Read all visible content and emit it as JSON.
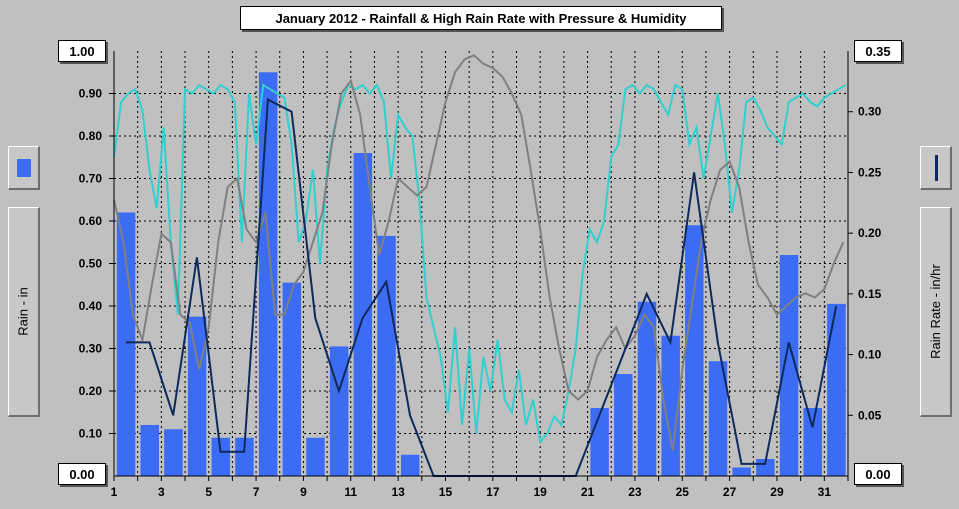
{
  "chart_data": {
    "type": "bar",
    "title": "January 2012 - Rainfall & High Rain Rate with Pressure & Humidity",
    "ylabel": "Rain - in",
    "y2label": "Rain Rate - in/hr",
    "ylim": [
      0,
      1.0
    ],
    "y2lim": [
      0,
      0.35
    ],
    "x_ticks": [
      "1",
      "3",
      "5",
      "7",
      "9",
      "11",
      "13",
      "15",
      "17",
      "19",
      "21",
      "23",
      "25",
      "27",
      "29",
      "31"
    ],
    "y_ticks": [
      "0.10",
      "0.20",
      "0.30",
      "0.40",
      "0.50",
      "0.60",
      "0.70",
      "0.80",
      "0.90"
    ],
    "y_top_label": "1.00",
    "y_bottom_label": "0.00",
    "y2_ticks": [
      "0.05",
      "0.10",
      "0.15",
      "0.20",
      "0.25",
      "0.30"
    ],
    "y2_top_label": "0.35",
    "y2_bottom_label": "0.00",
    "grid": true,
    "rain_color": "#3c6cf4",
    "rate_color": "#0c2a5c",
    "humidity_color": "#30d0d0",
    "pressure_color": "#808080",
    "daily_rain": {
      "name": "Rain",
      "days": [
        1,
        2,
        3,
        4,
        5,
        6,
        7,
        8,
        9,
        10,
        11,
        12,
        13,
        14,
        15,
        16,
        17,
        18,
        19,
        20,
        21,
        22,
        23,
        24,
        25,
        26,
        27,
        28,
        29,
        30,
        31
      ],
      "values": [
        0.62,
        0.12,
        0.11,
        0.375,
        0.09,
        0.09,
        0.95,
        0.455,
        0.09,
        0.305,
        0.76,
        0.565,
        0.05,
        0,
        0,
        0,
        0,
        0,
        0,
        0,
        0.16,
        0.24,
        0.41,
        0.33,
        0.59,
        0.27,
        0.02,
        0.04,
        0.52,
        0.16,
        0.405
      ]
    },
    "high_rain_rate": {
      "name": "High Rain Rate",
      "days": [
        1,
        2,
        3,
        4,
        5,
        6,
        7,
        8,
        9,
        10,
        11,
        12,
        13,
        14,
        15,
        16,
        17,
        18,
        19,
        20,
        21,
        22,
        23,
        24,
        25,
        26,
        27,
        28,
        29,
        30,
        31
      ],
      "values": [
        0.11,
        0.11,
        0.05,
        0.18,
        0.02,
        0.02,
        0.31,
        0.3,
        0.13,
        0.07,
        0.13,
        0.16,
        0.05,
        0,
        0,
        0,
        0,
        0,
        0,
        0,
        0.05,
        0.1,
        0.15,
        0.11,
        0.25,
        0.11,
        0.01,
        0.01,
        0.11,
        0.04,
        0.14
      ]
    },
    "humidity_trace": {
      "x": [
        1,
        1.3,
        1.6,
        1.9,
        2.2,
        2.5,
        2.8,
        3.1,
        3.4,
        3.7,
        4.0,
        4.3,
        4.6,
        4.9,
        5.2,
        5.5,
        5.8,
        6.1,
        6.4,
        6.7,
        7.0,
        7.3,
        7.6,
        7.9,
        8.2,
        8.5,
        8.8,
        9.1,
        9.4,
        9.7,
        10.0,
        10.3,
        10.6,
        10.9,
        11.2,
        11.5,
        11.8,
        12.1,
        12.4,
        12.7,
        13.0,
        13.3,
        13.6,
        13.9,
        14.2,
        14.5,
        14.8,
        15.1,
        15.4,
        15.7,
        16.0,
        16.3,
        16.6,
        16.9,
        17.2,
        17.5,
        17.8,
        18.1,
        18.4,
        18.7,
        19.0,
        19.3,
        19.6,
        19.9,
        20.2,
        20.5,
        20.8,
        21.1,
        21.4,
        21.7,
        22.0,
        22.3,
        22.6,
        22.9,
        23.2,
        23.5,
        23.8,
        24.1,
        24.4,
        24.7,
        25.0,
        25.3,
        25.6,
        25.9,
        26.2,
        26.5,
        26.8,
        27.1,
        27.4,
        27.7,
        28.0,
        28.3,
        28.6,
        28.9,
        29.2,
        29.5,
        29.8,
        30.1,
        30.4,
        30.7,
        31.0,
        31.3,
        31.6,
        31.9
      ],
      "values": [
        0.75,
        0.88,
        0.9,
        0.91,
        0.86,
        0.72,
        0.63,
        0.82,
        0.55,
        0.38,
        0.91,
        0.9,
        0.92,
        0.91,
        0.9,
        0.92,
        0.91,
        0.88,
        0.55,
        0.9,
        0.78,
        0.92,
        0.91,
        0.9,
        0.89,
        0.78,
        0.55,
        0.6,
        0.72,
        0.5,
        0.72,
        0.82,
        0.88,
        0.92,
        0.91,
        0.92,
        0.9,
        0.92,
        0.88,
        0.7,
        0.85,
        0.82,
        0.8,
        0.65,
        0.42,
        0.35,
        0.28,
        0.15,
        0.35,
        0.12,
        0.3,
        0.1,
        0.28,
        0.2,
        0.32,
        0.18,
        0.15,
        0.25,
        0.12,
        0.18,
        0.08,
        0.1,
        0.14,
        0.12,
        0.2,
        0.3,
        0.48,
        0.58,
        0.55,
        0.6,
        0.75,
        0.78,
        0.91,
        0.92,
        0.9,
        0.92,
        0.91,
        0.88,
        0.85,
        0.92,
        0.91,
        0.78,
        0.82,
        0.7,
        0.8,
        0.9,
        0.78,
        0.62,
        0.72,
        0.88,
        0.89,
        0.86,
        0.82,
        0.8,
        0.78,
        0.88,
        0.89,
        0.9,
        0.88,
        0.87,
        0.89,
        0.9,
        0.91,
        0.92
      ]
    },
    "pressure_trace": {
      "x": [
        1,
        1.4,
        1.8,
        2.2,
        2.6,
        3.0,
        3.4,
        3.8,
        4.2,
        4.6,
        5.0,
        5.4,
        5.8,
        6.2,
        6.6,
        7.0,
        7.4,
        7.8,
        8.2,
        8.6,
        9.0,
        9.4,
        9.8,
        10.2,
        10.6,
        11.0,
        11.4,
        11.8,
        12.2,
        12.6,
        13.0,
        13.4,
        13.8,
        14.2,
        14.6,
        15.0,
        15.4,
        15.8,
        16.2,
        16.6,
        17.0,
        17.4,
        17.8,
        18.2,
        18.6,
        19.0,
        19.4,
        19.8,
        20.2,
        20.6,
        21.0,
        21.4,
        21.8,
        22.2,
        22.6,
        23.0,
        23.4,
        23.8,
        24.2,
        24.6,
        25.0,
        25.4,
        25.8,
        26.2,
        26.6,
        27.0,
        27.4,
        27.8,
        28.2,
        28.6,
        29.0,
        29.4,
        29.8,
        30.2,
        30.6,
        31.0,
        31.4,
        31.8
      ],
      "values": [
        0.65,
        0.55,
        0.38,
        0.32,
        0.45,
        0.57,
        0.55,
        0.38,
        0.36,
        0.25,
        0.35,
        0.55,
        0.68,
        0.7,
        0.58,
        0.55,
        0.62,
        0.38,
        0.38,
        0.45,
        0.48,
        0.55,
        0.62,
        0.78,
        0.9,
        0.93,
        0.85,
        0.68,
        0.52,
        0.6,
        0.7,
        0.68,
        0.66,
        0.68,
        0.78,
        0.88,
        0.95,
        0.98,
        0.99,
        0.97,
        0.96,
        0.94,
        0.9,
        0.85,
        0.72,
        0.58,
        0.42,
        0.3,
        0.2,
        0.18,
        0.2,
        0.28,
        0.32,
        0.35,
        0.3,
        0.33,
        0.38,
        0.35,
        0.18,
        0.06,
        0.25,
        0.4,
        0.55,
        0.65,
        0.72,
        0.74,
        0.68,
        0.55,
        0.45,
        0.42,
        0.38,
        0.4,
        0.42,
        0.43,
        0.42,
        0.44,
        0.5,
        0.55
      ]
    }
  },
  "legend": {
    "left_label": "Rain - in",
    "right_label": "Rain Rate - in/hr"
  }
}
